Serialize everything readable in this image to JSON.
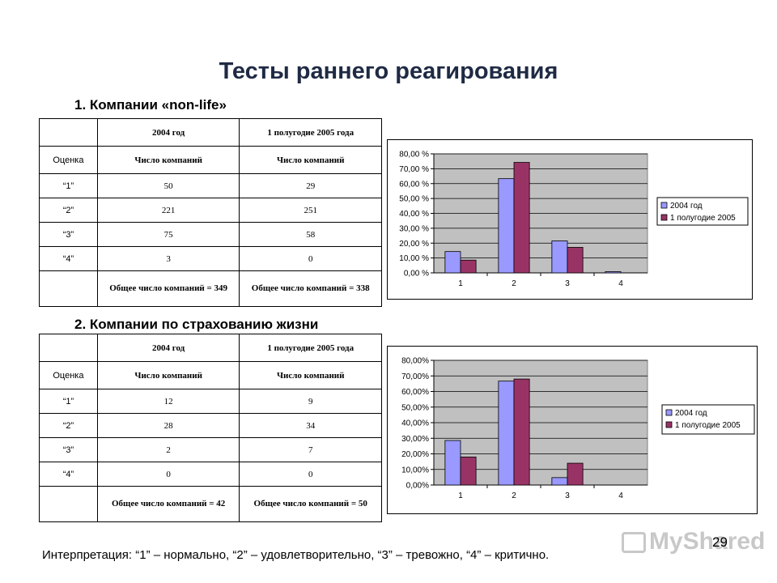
{
  "title": "Тесты раннего реагирования",
  "section1": {
    "heading": "1. Компании «non-life»"
  },
  "section2": {
    "heading": "2. Компании по страхованию жизни"
  },
  "table1": {
    "head": [
      "",
      "2004 год",
      "1 полугодие 2005 года"
    ],
    "sub": [
      "Оценка",
      "Число компаний",
      "Число компаний"
    ],
    "rows": [
      [
        "“1”",
        "50",
        "29"
      ],
      [
        "“2”",
        "221",
        "251"
      ],
      [
        "“3”",
        "75",
        "58"
      ],
      [
        "“4”",
        "3",
        "0"
      ]
    ],
    "total": [
      "",
      "Общее число компаний = 349",
      "Общее число компаний = 338"
    ]
  },
  "table2": {
    "head": [
      "",
      "2004 год",
      "1 полугодие 2005 года"
    ],
    "sub": [
      "Оценка",
      "Число компаний",
      "Число компаний"
    ],
    "rows": [
      [
        "“1”",
        "12",
        "9"
      ],
      [
        "“2”",
        "28",
        "34"
      ],
      [
        "“3”",
        "2",
        "7"
      ],
      [
        "“4”",
        "0",
        "0"
      ]
    ],
    "total": [
      "",
      "Общее число компаний = 42",
      "Общее число компаний = 50"
    ]
  },
  "chart_data": [
    {
      "type": "bar",
      "categories": [
        "1",
        "2",
        "3",
        "4"
      ],
      "series": [
        {
          "name": "2004 год",
          "values": [
            14.33,
            63.32,
            21.49,
            0.86
          ],
          "color": "#9999ff"
        },
        {
          "name": "1 полугодие 2005",
          "values": [
            8.58,
            74.26,
            17.16,
            0.0
          ],
          "color": "#993366"
        }
      ],
      "ylim": [
        0,
        80
      ],
      "yticks": [
        "0,00 %",
        "10,00 %",
        "20,00 %",
        "30,00 %",
        "40,00 %",
        "50,00 %",
        "60,00 %",
        "70,00 %",
        "80,00 %"
      ],
      "grid": true,
      "legend": "right",
      "plot_bg": "#c0c0c0"
    },
    {
      "type": "bar",
      "categories": [
        "1",
        "2",
        "3",
        "4"
      ],
      "series": [
        {
          "name": "2004 год",
          "values": [
            28.57,
            66.67,
            4.76,
            0.0
          ],
          "color": "#9999ff"
        },
        {
          "name": "1 полугодие 2005",
          "values": [
            18.0,
            68.0,
            14.0,
            0.0
          ],
          "color": "#993366"
        }
      ],
      "ylim": [
        0,
        80
      ],
      "yticks": [
        "0,00%",
        "10,00%",
        "20,00%",
        "30,00%",
        "40,00%",
        "50,00%",
        "60,00%",
        "70,00%",
        "80,00%"
      ],
      "grid": true,
      "legend": "right",
      "plot_bg": "#c0c0c0"
    }
  ],
  "footer": "Интерпретация: “1” – нормально, “2” – удовлетворительно, “3” – тревожно, “4” – критично.",
  "page_number": "29",
  "watermark": "MyShared"
}
